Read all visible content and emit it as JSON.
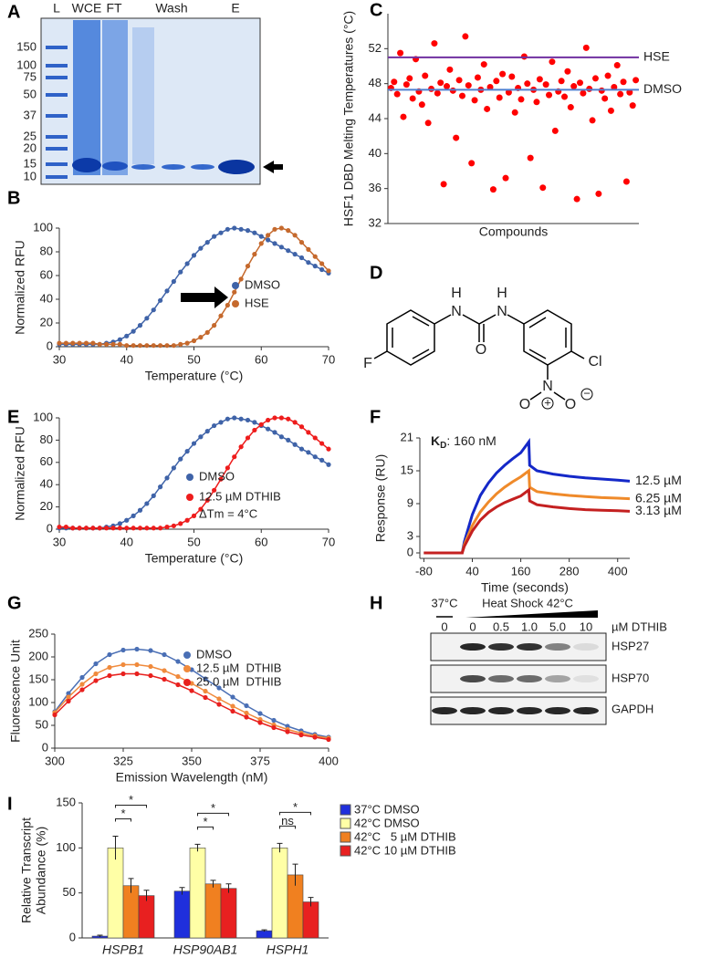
{
  "panel_labels": [
    "A",
    "B",
    "C",
    "D",
    "E",
    "F",
    "G",
    "H",
    "I"
  ],
  "gel": {
    "lanes": [
      "L",
      "WCE",
      "FT",
      "Wash",
      "E"
    ],
    "markers": [
      "150",
      "100",
      "75",
      "50",
      "37",
      "25",
      "20",
      "15",
      "10"
    ]
  },
  "structure": {
    "atoms": [
      "H",
      "N",
      "O",
      "N",
      "H",
      "F",
      "Cl",
      "N",
      "O",
      "O"
    ],
    "charges": [
      "+",
      "−"
    ]
  },
  "blot": {
    "conditions": [
      "37°C",
      "Heat Shock 42°C"
    ],
    "doses": [
      "0",
      "0",
      "0.5",
      "1.0",
      "5.0",
      "10"
    ],
    "dose_unit": "µM DTHIB",
    "proteins": [
      "HSP27",
      "HSP70",
      "GAPDH"
    ]
  },
  "chart_data": [
    {
      "type": "line",
      "x": [
        30,
        31,
        32,
        33,
        34,
        35,
        36,
        37,
        38,
        39,
        40,
        41,
        42,
        43,
        44,
        45,
        46,
        47,
        48,
        49,
        50,
        51,
        52,
        53,
        54,
        55,
        56,
        57,
        58,
        59,
        60,
        61,
        62,
        63,
        64,
        65,
        66,
        67,
        68,
        69,
        70
      ],
      "series": [
        {
          "name": "DMSO",
          "color": "#3f63a8",
          "values": [
            2,
            2,
            2,
            2,
            2,
            2,
            2,
            3,
            4,
            6,
            9,
            13,
            18,
            24,
            31,
            39,
            47,
            55,
            63,
            70,
            77,
            83,
            88,
            93,
            96,
            99,
            100,
            99,
            98,
            96,
            93,
            90,
            87,
            84,
            81,
            78,
            75,
            71,
            68,
            65,
            62
          ]
        },
        {
          "name": "HSE",
          "color": "#c5692d",
          "values": [
            3,
            3,
            3,
            3,
            3,
            3,
            2,
            2,
            2,
            2,
            1,
            1,
            1,
            1,
            1,
            1,
            1,
            1,
            2,
            3,
            5,
            8,
            12,
            18,
            26,
            35,
            46,
            57,
            68,
            78,
            87,
            94,
            99,
            100,
            98,
            94,
            88,
            82,
            76,
            70,
            64
          ]
        }
      ],
      "xlim": [
        30,
        70
      ],
      "xticks": [
        30,
        40,
        50,
        60,
        70
      ],
      "ylim": [
        0,
        100
      ],
      "yticks": [
        0,
        20,
        40,
        60,
        80,
        100
      ],
      "xlabel": "Temperature (°C)",
      "ylabel": "Normalized RFU",
      "markers": true,
      "legend": "lower right"
    },
    {
      "type": "scatter",
      "x": [
        1,
        2,
        3,
        4,
        5,
        6,
        7,
        8,
        9,
        10,
        11,
        12,
        13,
        14,
        15,
        16,
        17,
        18,
        19,
        20,
        21,
        22,
        23,
        24,
        25,
        26,
        27,
        28,
        29,
        30,
        31,
        32,
        33,
        34,
        35,
        36,
        37,
        38,
        39,
        40,
        41,
        42,
        43,
        44,
        45,
        46,
        47,
        48,
        49,
        50,
        51,
        52,
        53,
        54,
        55,
        56,
        57,
        58,
        59,
        60,
        61,
        62,
        63,
        64,
        65,
        66,
        67,
        68,
        69,
        70,
        71,
        72,
        73,
        74,
        75,
        76,
        77,
        78,
        79,
        80
      ],
      "values": [
        47.5,
        48.2,
        46.8,
        51.5,
        44.2,
        47.9,
        48.6,
        46.3,
        50.8,
        47.1,
        45.6,
        48.9,
        43.5,
        47.4,
        52.6,
        46.9,
        48.1,
        36.5,
        47.7,
        49.6,
        47.2,
        41.8,
        48.4,
        46.6,
        53.4,
        47.8,
        38.9,
        46.1,
        48.7,
        47.3,
        50.2,
        45.1,
        47.6,
        35.9,
        48.3,
        46.4,
        49.1,
        37.2,
        47.0,
        48.8,
        44.7,
        47.5,
        46.2,
        51.1,
        48.0,
        39.5,
        47.3,
        45.9,
        48.5,
        36.1,
        47.9,
        46.7,
        50.5,
        42.6,
        47.1,
        48.3,
        46.5,
        49.4,
        45.3,
        47.7,
        34.8,
        48.1,
        46.9,
        52.1,
        47.4,
        43.8,
        48.6,
        35.4,
        47.2,
        46.3,
        48.9,
        44.9,
        47.6,
        50.1,
        46.8,
        48.2,
        36.8,
        47.0,
        45.5,
        48.4
      ],
      "color": "#ff0000",
      "xlim": [
        0,
        81
      ],
      "ylim": [
        32,
        56
      ],
      "yticks": [
        32,
        36,
        40,
        44,
        48,
        52
      ],
      "xlabel": "Compounds",
      "ylabel": "HSF1 DBD Melting Temperatures (°C)",
      "ref_lines": [
        {
          "label": "HSE",
          "value": 51,
          "color": "#7030a0"
        },
        {
          "label": "DMSO",
          "value": 47.3,
          "color": "#4f7fd0"
        }
      ]
    },
    {
      "type": "line",
      "x": [
        30,
        31,
        32,
        33,
        34,
        35,
        36,
        37,
        38,
        39,
        40,
        41,
        42,
        43,
        44,
        45,
        46,
        47,
        48,
        49,
        50,
        51,
        52,
        53,
        54,
        55,
        56,
        57,
        58,
        59,
        60,
        61,
        62,
        63,
        64,
        65,
        66,
        67,
        68,
        69,
        70
      ],
      "series": [
        {
          "name": "DMSO",
          "color": "#3f63a8",
          "values": [
            1,
            1,
            1,
            1,
            1,
            1,
            1,
            2,
            3,
            5,
            8,
            12,
            17,
            23,
            30,
            38,
            46,
            55,
            63,
            70,
            77,
            83,
            88,
            93,
            96,
            99,
            100,
            99,
            98,
            96,
            93,
            90,
            87,
            83,
            80,
            76,
            72,
            69,
            65,
            62,
            58
          ]
        },
        {
          "name": "12.5 µM DTHIB",
          "color": "#ee1c1c",
          "values": [
            2,
            2,
            1,
            1,
            1,
            1,
            1,
            1,
            1,
            1,
            1,
            1,
            1,
            1,
            1,
            1,
            2,
            3,
            5,
            8,
            12,
            18,
            26,
            35,
            45,
            55,
            65,
            74,
            82,
            89,
            94,
            98,
            100,
            100,
            99,
            96,
            92,
            87,
            82,
            77,
            72
          ]
        }
      ],
      "xlim": [
        30,
        70
      ],
      "xticks": [
        30,
        40,
        50,
        60,
        70
      ],
      "ylim": [
        0,
        100
      ],
      "yticks": [
        0,
        20,
        40,
        60,
        80,
        100
      ],
      "xlabel": "Temperature (°C)",
      "ylabel": "Normalized RFU",
      "markers": true,
      "legend": "lower right",
      "annotation": "ΔTm = 4°C"
    },
    {
      "type": "line",
      "x": [
        -80,
        -40,
        0,
        15,
        20,
        40,
        60,
        80,
        100,
        120,
        140,
        160,
        180,
        182,
        200,
        240,
        280,
        320,
        360,
        400,
        430
      ],
      "series": [
        {
          "name": "12.5 µM",
          "color": "#1428c8",
          "values": [
            0,
            0,
            0,
            0,
            2,
            7,
            10.5,
            12.8,
            14.6,
            16,
            17.2,
            18.3,
            20.3,
            16,
            15,
            14.4,
            14,
            13.7,
            13.5,
            13.3,
            13.1
          ]
        },
        {
          "name": "6.25 µM",
          "color": "#ef8a2a",
          "values": [
            0,
            0,
            0,
            0,
            1.5,
            5,
            7.5,
            9.3,
            10.8,
            12,
            13,
            13.9,
            15,
            12,
            11.2,
            10.8,
            10.5,
            10.3,
            10.1,
            10,
            9.9
          ]
        },
        {
          "name": "3.13 µM",
          "color": "#c42020",
          "values": [
            0,
            0,
            0,
            0,
            1.2,
            4,
            6,
            7.4,
            8.4,
            9.2,
            9.8,
            10.4,
            11.5,
            9.5,
            8.8,
            8.4,
            8.1,
            7.9,
            7.8,
            7.7,
            7.6
          ]
        }
      ],
      "xlim": [
        -90,
        430
      ],
      "xticks": [
        -80,
        40,
        160,
        280,
        400
      ],
      "ylim": [
        -1,
        21
      ],
      "yticks": [
        0,
        3,
        9,
        15,
        21
      ],
      "xlabel": "Time (seconds)",
      "ylabel": "Response (RU)",
      "markers": false,
      "legend": "end",
      "annotation": {
        "symbol": "K",
        "subscript": "D",
        "text": ": 160 nM"
      }
    },
    {
      "type": "line",
      "x": [
        300,
        305,
        310,
        315,
        320,
        325,
        330,
        335,
        340,
        345,
        350,
        355,
        360,
        365,
        370,
        375,
        380,
        385,
        390,
        395,
        400
      ],
      "series": [
        {
          "name": "DMSO",
          "color": "#4a6fb5",
          "values": [
            80,
            120,
            155,
            185,
            205,
            215,
            217,
            214,
            205,
            190,
            172,
            152,
            132,
            112,
            93,
            76,
            61,
            48,
            38,
            30,
            24
          ]
        },
        {
          "name": "12.5 µM  DTHIB",
          "color": "#f08a3c",
          "values": [
            78,
            112,
            140,
            163,
            177,
            183,
            183,
            179,
            170,
            157,
            142,
            125,
            108,
            92,
            77,
            63,
            51,
            41,
            33,
            27,
            22
          ]
        },
        {
          "name": "25.0 µM  DTHIB",
          "color": "#e8201e",
          "values": [
            73,
            103,
            128,
            148,
            159,
            163,
            163,
            159,
            151,
            139,
            126,
            111,
            96,
            81,
            68,
            56,
            45,
            36,
            29,
            24,
            19
          ]
        }
      ],
      "xlim": [
        300,
        400
      ],
      "xticks": [
        300,
        325,
        350,
        375,
        400
      ],
      "ylim": [
        0,
        250
      ],
      "yticks": [
        0,
        50,
        100,
        150,
        200,
        250
      ],
      "xlabel": "Emission Wavelength (nM)",
      "ylabel": "Fluorescence Unit",
      "markers": true,
      "legend": "upper right"
    },
    {
      "type": "bar",
      "categories": [
        "HSPB1",
        "HSP90AB1",
        "HSPH1"
      ],
      "series": [
        {
          "name": "37°C DMSO",
          "color": "#1f2fdc",
          "values": [
            2,
            52,
            8
          ],
          "errors": [
            1,
            4,
            1
          ]
        },
        {
          "name": "42°C DMSO",
          "color": "#ffffa6",
          "values": [
            100,
            100,
            100
          ],
          "errors": [
            13,
            4,
            5
          ]
        },
        {
          "name": "42°C   5 µM DTHIB",
          "color": "#f08020",
          "values": [
            58,
            60,
            70
          ],
          "errors": [
            8,
            4,
            12
          ]
        },
        {
          "name": "42°C 10 µM DTHIB",
          "color": "#e82020",
          "values": [
            47,
            55,
            40
          ],
          "errors": [
            6,
            5,
            5
          ]
        }
      ],
      "ylim": [
        0,
        150
      ],
      "yticks": [
        0,
        50,
        100,
        150
      ],
      "ylabel": [
        "Relative Transcript",
        "Abundance (%)"
      ],
      "legend": "right outside",
      "significance": [
        {
          "category": 0,
          "series": [
            1,
            2
          ],
          "label": "*"
        },
        {
          "category": 0,
          "series": [
            1,
            3
          ],
          "label": "*"
        },
        {
          "category": 1,
          "series": [
            1,
            2
          ],
          "label": "*"
        },
        {
          "category": 1,
          "series": [
            1,
            3
          ],
          "label": "*"
        },
        {
          "category": 2,
          "series": [
            1,
            2
          ],
          "label": "ns"
        },
        {
          "category": 2,
          "series": [
            1,
            3
          ],
          "label": "*"
        }
      ]
    }
  ]
}
